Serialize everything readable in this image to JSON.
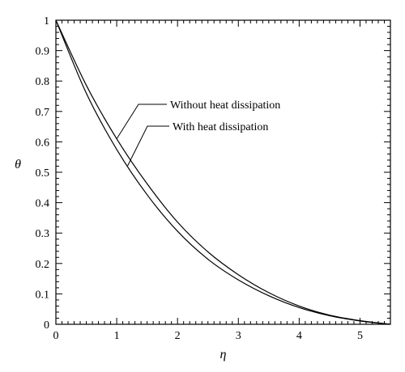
{
  "chart_data": {
    "type": "line",
    "title": "",
    "xlabel": "η",
    "ylabel": "θ",
    "xlim": [
      0,
      5.5
    ],
    "ylim": [
      0,
      1
    ],
    "x_ticks": [
      0,
      1,
      2,
      3,
      4,
      5
    ],
    "y_ticks": [
      0,
      0.1,
      0.2,
      0.3,
      0.4,
      0.5,
      0.6,
      0.7,
      0.8,
      0.9,
      1
    ],
    "x_tick_labels": [
      "0",
      "1",
      "2",
      "3",
      "4",
      "5"
    ],
    "y_tick_labels": [
      "0",
      "0.1",
      "0.2",
      "0.3",
      "0.4",
      "0.5",
      "0.6",
      "0.7",
      "0.8",
      "0.9",
      "1"
    ],
    "x_minor_step": 0.1,
    "y_minor_step": 0.02,
    "grid": false,
    "x": [
      0,
      0.5,
      1,
      1.5,
      2,
      2.5,
      3,
      3.5,
      4,
      4.5,
      5,
      5.5
    ],
    "series": [
      {
        "name": "Without heat dissipation",
        "values": [
          1,
          0.786,
          0.61,
          0.462,
          0.336,
          0.238,
          0.163,
          0.104,
          0.06,
          0.03,
          0.012,
          0
        ]
      },
      {
        "name": "With heat dissipation",
        "values": [
          1,
          0.76,
          0.575,
          0.426,
          0.306,
          0.214,
          0.146,
          0.094,
          0.055,
          0.028,
          0.011,
          0
        ]
      }
    ],
    "annotations": [
      {
        "text": "Without heat dissipation",
        "series": 0
      },
      {
        "text": "With heat dissipation",
        "series": 1
      }
    ]
  }
}
